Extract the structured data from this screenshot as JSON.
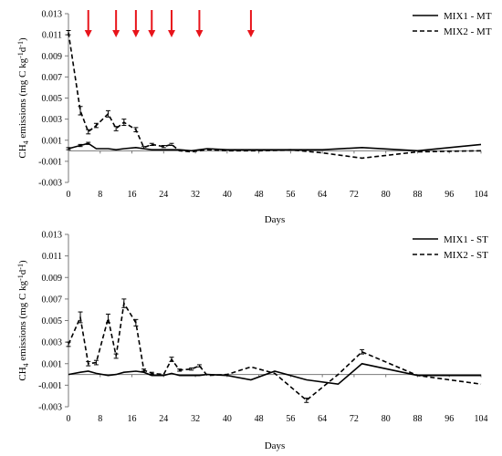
{
  "chart_data": [
    {
      "type": "line",
      "xlabel": "Days",
      "ylabel_main": "CH",
      "ylabel_sub": "4",
      "ylabel_rest": " emissions (mg C kg",
      "ylabel_sup1": "-1",
      "ylabel_mid": "d",
      "ylabel_sup2": "-1",
      "ylabel_end": ")",
      "xlim": [
        0,
        104
      ],
      "ylim": [
        -0.003,
        0.013
      ],
      "xticks": [
        "0",
        "8",
        "16",
        "24",
        "32",
        "40",
        "48",
        "56",
        "64",
        "72",
        "80",
        "88",
        "96",
        "104"
      ],
      "yticks": [
        "-0.003",
        "-0.001",
        "0.001",
        "0.003",
        "0.005",
        "0.007",
        "0.009",
        "0.011",
        "0.013"
      ],
      "arrows_x": [
        5,
        12,
        17,
        21,
        26,
        33,
        46
      ],
      "arrow_color": "#e8141b",
      "legend_position": "top-right",
      "series": [
        {
          "name": "MIX1 - MT",
          "style": "solid",
          "x": [
            0,
            3,
            5,
            7,
            10,
            12,
            14,
            17,
            19,
            21,
            24,
            26,
            28,
            31,
            33,
            35,
            40,
            48,
            56,
            64,
            74,
            88,
            104
          ],
          "y": [
            0.0002,
            0.0005,
            0.0007,
            0.0002,
            0.0002,
            0.0001,
            0.0002,
            0.0003,
            0.0002,
            0.0001,
            0.0001,
            0.0001,
            0.0001,
            0.0,
            0.0001,
            0.0002,
            0.0001,
            0.0001,
            0.0001,
            0.0001,
            0.0003,
            0.0,
            0.0006
          ],
          "err": [
            0.0001,
            0.0001,
            0.0001,
            0,
            0,
            0,
            0,
            0,
            0,
            0,
            0,
            0,
            0,
            0,
            0,
            0,
            0,
            0,
            0,
            0,
            0,
            0,
            0
          ]
        },
        {
          "name": "MIX2 - MT",
          "style": "dashed",
          "x": [
            0,
            3,
            5,
            7,
            10,
            12,
            14,
            17,
            19,
            21,
            24,
            26,
            28,
            31,
            33,
            35,
            40,
            48,
            56,
            64,
            74,
            88,
            104
          ],
          "y": [
            0.0112,
            0.0038,
            0.0018,
            0.0024,
            0.0035,
            0.0021,
            0.0027,
            0.002,
            0.0003,
            0.0006,
            0.0004,
            0.0006,
            0.0,
            -0.0001,
            0.0,
            0.0001,
            0.0,
            0.0,
            0.0001,
            -0.0002,
            -0.0007,
            -0.0001,
            0.0
          ],
          "err": [
            0.0002,
            0.0004,
            0.0002,
            0.0002,
            0.0003,
            0.0002,
            0.0003,
            0.0002,
            0.0001,
            0.0001,
            0.0001,
            0.0001,
            0,
            0,
            0,
            0,
            0,
            0,
            0,
            0,
            0,
            0,
            0
          ]
        }
      ]
    },
    {
      "type": "line",
      "xlabel": "Days",
      "ylabel_main": "CH",
      "ylabel_sub": "4",
      "ylabel_rest": " emissions (mg C kg",
      "ylabel_sup1": "-1",
      "ylabel_mid": "d",
      "ylabel_sup2": "-1",
      "ylabel_end": ")",
      "xlim": [
        0,
        104
      ],
      "ylim": [
        -0.003,
        0.013
      ],
      "xticks": [
        "0",
        "8",
        "16",
        "24",
        "32",
        "40",
        "48",
        "56",
        "64",
        "72",
        "80",
        "88",
        "96",
        "104"
      ],
      "yticks": [
        "-0.003",
        "-0.001",
        "0.001",
        "0.003",
        "0.005",
        "0.007",
        "0.009",
        "0.011",
        "0.013"
      ],
      "arrows_x": [],
      "arrow_color": "#e8141b",
      "legend_position": "top-right",
      "series": [
        {
          "name": "MIX1 - ST",
          "style": "solid",
          "x": [
            0,
            3,
            5,
            7,
            10,
            12,
            14,
            17,
            19,
            21,
            24,
            26,
            28,
            31,
            33,
            35,
            40,
            46,
            52,
            60,
            68,
            74,
            88,
            104
          ],
          "y": [
            0.0,
            0.0002,
            0.0003,
            0.0001,
            -0.0001,
            0.0,
            0.0002,
            0.0003,
            0.0002,
            -0.0001,
            -0.0001,
            0.0001,
            -0.0001,
            -0.0001,
            -0.0001,
            0.0,
            -0.0001,
            -0.0005,
            0.0003,
            -0.0005,
            -0.0009,
            0.001,
            -0.0001,
            -0.0001
          ],
          "err": [
            0,
            0,
            0,
            0,
            0,
            0,
            0,
            0,
            0,
            0,
            0,
            0,
            0,
            0,
            0,
            0,
            0,
            0,
            0,
            0,
            0,
            0,
            0,
            0
          ]
        },
        {
          "name": "MIX2 - ST",
          "style": "dashed",
          "x": [
            0,
            3,
            5,
            7,
            10,
            12,
            14,
            17,
            19,
            21,
            24,
            26,
            28,
            31,
            33,
            35,
            40,
            46,
            52,
            60,
            68,
            74,
            88,
            104
          ],
          "y": [
            0.0028,
            0.0053,
            0.001,
            0.0011,
            0.0052,
            0.0017,
            0.0066,
            0.0048,
            0.0004,
            0.0001,
            0.0,
            0.0014,
            0.0004,
            0.0005,
            0.0008,
            -0.0001,
            0.0,
            0.0007,
            0.0001,
            -0.0024,
            0.0,
            0.0021,
            -0.0001,
            -0.0009
          ],
          "err": [
            0.0002,
            0.0005,
            0.0002,
            0.0002,
            0.0004,
            0.0002,
            0.0004,
            0.0003,
            0.0001,
            0.0001,
            0,
            0.0002,
            0.0001,
            0.0001,
            0.0001,
            0,
            0,
            0,
            0,
            0.0002,
            0,
            0.0002,
            0,
            0
          ]
        }
      ]
    }
  ]
}
